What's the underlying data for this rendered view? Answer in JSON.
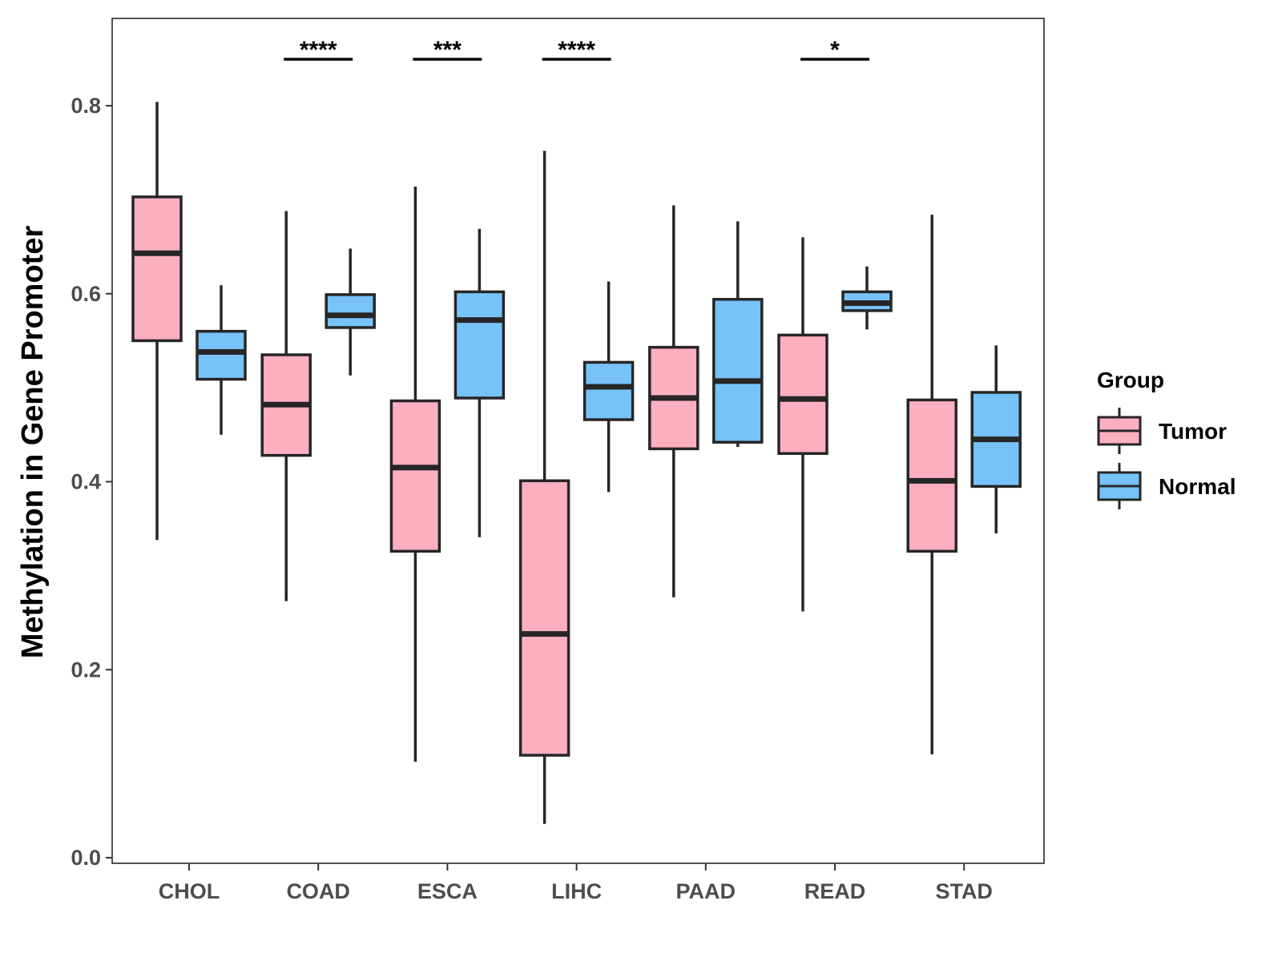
{
  "chart_data": {
    "type": "boxplot",
    "title": "",
    "xlabel": "",
    "ylabel": "Methylation in Gene Promoter",
    "ylim": [
      0.0,
      0.9
    ],
    "yticks": [
      0.0,
      0.2,
      0.4,
      0.6,
      0.8
    ],
    "ytick_labels": [
      "0.0",
      "0.2",
      "0.4",
      "0.6",
      "0.8"
    ],
    "categories": [
      "CHOL",
      "COAD",
      "ESCA",
      "LIHC",
      "PAAD",
      "READ",
      "STAD"
    ],
    "legend": {
      "title": "Group",
      "position": "right",
      "entries": [
        {
          "name": "Tumor",
          "color": "#fcafc1"
        },
        {
          "name": "Normal",
          "color": "#77c2f9"
        }
      ]
    },
    "series": [
      {
        "name": "Tumor",
        "color": "#fcafc1",
        "boxes": [
          {
            "category": "CHOL",
            "whisker_low": 0.338,
            "q1": 0.55,
            "median": 0.643,
            "q3": 0.703,
            "whisker_high": 0.804
          },
          {
            "category": "COAD",
            "whisker_low": 0.273,
            "q1": 0.428,
            "median": 0.482,
            "q3": 0.535,
            "whisker_high": 0.688
          },
          {
            "category": "ESCA",
            "whisker_low": 0.102,
            "q1": 0.326,
            "median": 0.415,
            "q3": 0.486,
            "whisker_high": 0.714
          },
          {
            "category": "LIHC",
            "whisker_low": 0.036,
            "q1": 0.109,
            "median": 0.238,
            "q3": 0.401,
            "whisker_high": 0.752
          },
          {
            "category": "PAAD",
            "whisker_low": 0.277,
            "q1": 0.435,
            "median": 0.489,
            "q3": 0.543,
            "whisker_high": 0.694
          },
          {
            "category": "READ",
            "whisker_low": 0.262,
            "q1": 0.43,
            "median": 0.488,
            "q3": 0.556,
            "whisker_high": 0.66
          },
          {
            "category": "STAD",
            "whisker_low": 0.11,
            "q1": 0.326,
            "median": 0.401,
            "q3": 0.487,
            "whisker_high": 0.684
          }
        ]
      },
      {
        "name": "Normal",
        "color": "#77c2f9",
        "boxes": [
          {
            "category": "CHOL",
            "whisker_low": 0.45,
            "q1": 0.509,
            "median": 0.538,
            "q3": 0.56,
            "whisker_high": 0.609
          },
          {
            "category": "COAD",
            "whisker_low": 0.513,
            "q1": 0.564,
            "median": 0.577,
            "q3": 0.599,
            "whisker_high": 0.648
          },
          {
            "category": "ESCA",
            "whisker_low": 0.341,
            "q1": 0.489,
            "median": 0.572,
            "q3": 0.602,
            "whisker_high": 0.669
          },
          {
            "category": "LIHC",
            "whisker_low": 0.389,
            "q1": 0.466,
            "median": 0.501,
            "q3": 0.527,
            "whisker_high": 0.613
          },
          {
            "category": "PAAD",
            "whisker_low": 0.437,
            "q1": 0.442,
            "median": 0.507,
            "q3": 0.594,
            "whisker_high": 0.677
          },
          {
            "category": "READ",
            "whisker_low": 0.562,
            "q1": 0.582,
            "median": 0.59,
            "q3": 0.602,
            "whisker_high": 0.629
          },
          {
            "category": "STAD",
            "whisker_low": 0.345,
            "q1": 0.395,
            "median": 0.445,
            "q3": 0.495,
            "whisker_high": 0.545
          }
        ]
      }
    ],
    "annotations": [
      {
        "category": "COAD",
        "label": "****"
      },
      {
        "category": "ESCA",
        "label": "***"
      },
      {
        "category": "LIHC",
        "label": "****"
      },
      {
        "category": "READ",
        "label": "*"
      }
    ]
  }
}
